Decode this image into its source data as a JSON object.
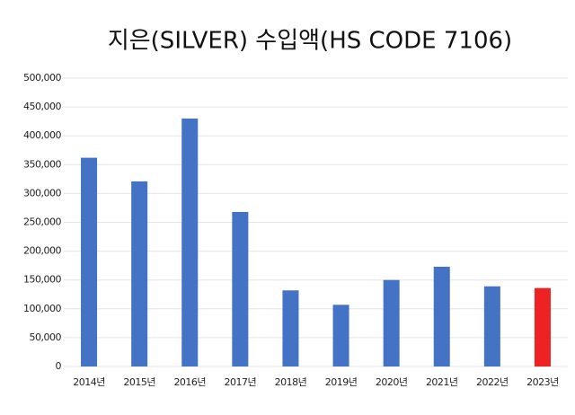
{
  "chart_data": {
    "type": "bar",
    "title": "지은(SILVER) 수입액(HS CODE 7106)",
    "categories": [
      "2014년",
      "2015년",
      "2016년",
      "2017년",
      "2018년",
      "2019년",
      "2020년",
      "2021년",
      "2022년",
      "2023년"
    ],
    "values": [
      362000,
      321000,
      430000,
      268000,
      132000,
      107000,
      150000,
      173000,
      139000,
      136000
    ],
    "colors": [
      "#4472c4",
      "#4472c4",
      "#4472c4",
      "#4472c4",
      "#4472c4",
      "#4472c4",
      "#4472c4",
      "#4472c4",
      "#4472c4",
      "#ee2222"
    ],
    "ylim": [
      0,
      500000
    ],
    "yticks": [
      0,
      {
        "value": 50000,
        "label": "50,000"
      },
      {
        "value": 100000,
        "label": "100,000"
      },
      {
        "value": 150000,
        "label": "150,000"
      },
      {
        "value": 200000,
        "label": "200,000"
      },
      {
        "value": 250000,
        "label": "250,000"
      },
      {
        "value": 300000,
        "label": "300,000"
      },
      {
        "value": 350000,
        "label": "350,000"
      },
      {
        "value": 400000,
        "label": "400,000"
      },
      {
        "value": 450000,
        "label": "450,000"
      },
      {
        "value": 500000,
        "label": "500,000"
      }
    ],
    "grid": true
  }
}
